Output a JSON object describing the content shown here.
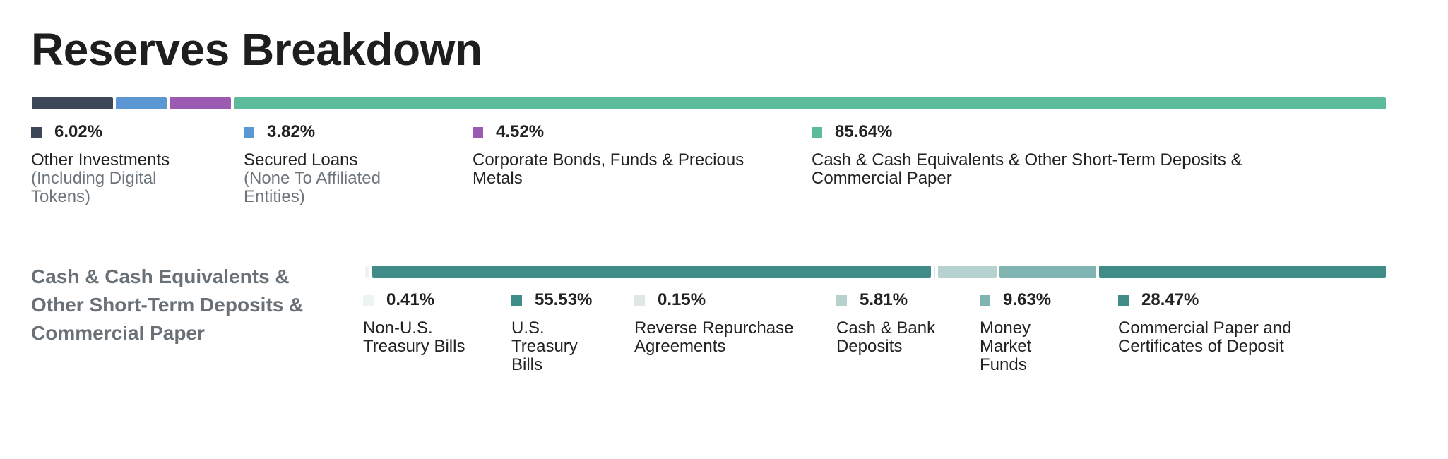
{
  "title": "Reserves Breakdown",
  "chart_data": [
    {
      "type": "bar",
      "orientation": "horizontal-stacked",
      "title": "",
      "unit": "%",
      "categories": [
        "Other Investments",
        "Secured Loans",
        "Corporate Bonds, Funds & Precious Metals",
        "Cash & Cash Equivalents & Other Short-Term Deposits & Commercial Paper"
      ],
      "subtitles": [
        "(Including Digital Tokens)",
        "(None To Affiliated Entities)",
        "",
        ""
      ],
      "values": [
        6.02,
        3.82,
        4.52,
        85.64
      ],
      "value_labels": [
        "6.02%",
        "3.82%",
        "4.52%",
        "85.64%"
      ],
      "colors": [
        "#3d4758",
        "#5b97d3",
        "#9b5bb3",
        "#5cbb9a"
      ]
    },
    {
      "type": "bar",
      "orientation": "horizontal-stacked",
      "title": "Cash & Cash Equivalents & Other Short-Term Deposits & Commercial Paper",
      "unit": "%",
      "categories": [
        "Non-U.S. Treasury Bills",
        "U.S. Treasury Bills",
        "Reverse Repurchase Agreements",
        "Cash & Bank Deposits",
        "Money Market Funds",
        "Commercial Paper and Certificates of Deposit"
      ],
      "values": [
        0.41,
        55.53,
        0.15,
        5.81,
        9.63,
        28.47
      ],
      "value_labels": [
        "0.41%",
        "55.53%",
        "0.15%",
        "5.81%",
        "9.63%",
        "28.47%"
      ],
      "colors": [
        "#eef4f4",
        "#3f8c88",
        "#dde8e7",
        "#b7d1cf",
        "#7fb4b0",
        "#3f8c88"
      ]
    }
  ]
}
